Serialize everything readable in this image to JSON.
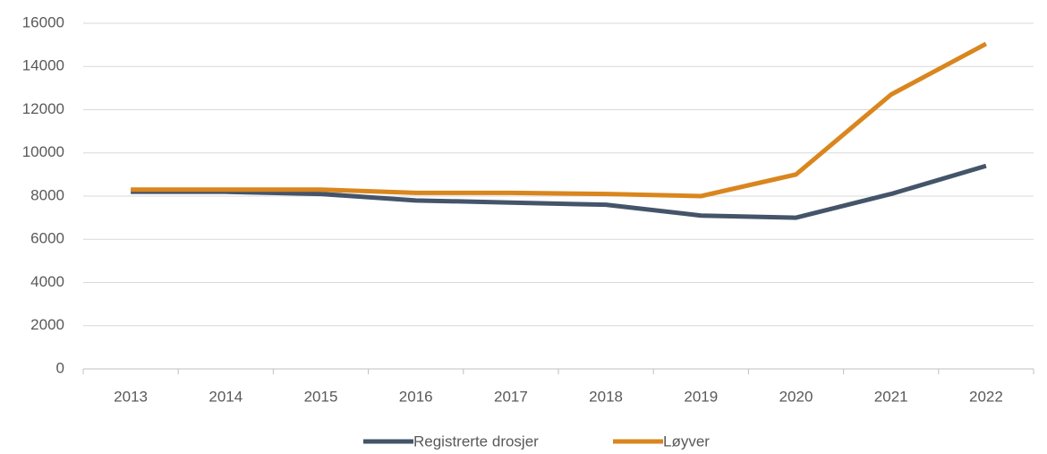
{
  "chart_data": {
    "type": "line",
    "categories": [
      "2013",
      "2014",
      "2015",
      "2016",
      "2017",
      "2018",
      "2019",
      "2020",
      "2021",
      "2022"
    ],
    "series": [
      {
        "name": "Registrerte drosjer",
        "color": "#44546a",
        "values": [
          8200,
          8200,
          8100,
          7800,
          7700,
          7600,
          7100,
          7000,
          8100,
          9400
        ]
      },
      {
        "name": "Løyver",
        "color": "#d9861e",
        "values": [
          8300,
          8300,
          8300,
          8150,
          8150,
          8100,
          8000,
          9000,
          12700,
          15050
        ]
      }
    ],
    "ylim": [
      0,
      16000
    ],
    "yticks": [
      0,
      2000,
      4000,
      6000,
      8000,
      10000,
      12000,
      14000,
      16000
    ],
    "grid": true,
    "legend": "bottom"
  }
}
